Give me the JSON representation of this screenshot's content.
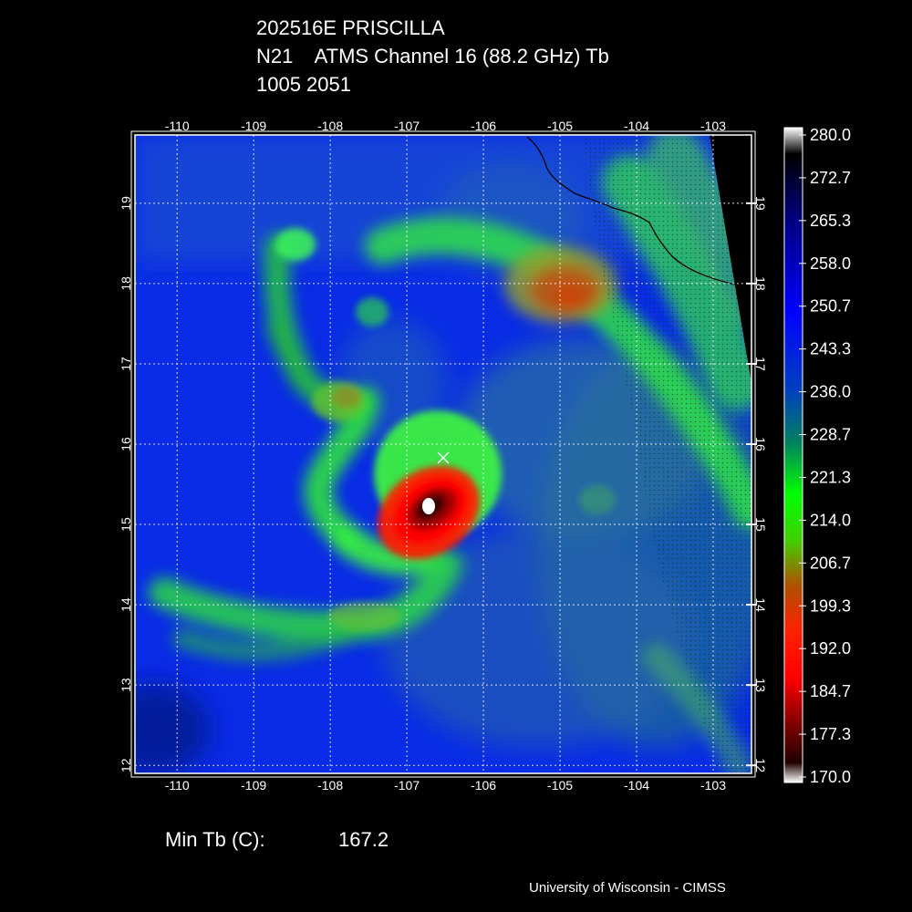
{
  "title": {
    "line1": "202516E PRISCILLA",
    "line2": "N21    ATMS Channel 16 (88.2 GHz) Tb",
    "line3": "1005 2051"
  },
  "map": {
    "lon_range": [
      -110.55,
      -102.5
    ],
    "lat_range": [
      11.9,
      19.85
    ],
    "lon_ticks": [
      -110,
      -109,
      -108,
      -107,
      -106,
      -105,
      -104,
      -103
    ],
    "lat_ticks": [
      12,
      13,
      14,
      15,
      16,
      17,
      18,
      19
    ],
    "lon_tick_labels": [
      "-110",
      "-109",
      "-108",
      "-107",
      "-106",
      "-105",
      "-104",
      "-103"
    ],
    "lat_tick_labels": [
      "12",
      "13",
      "14",
      "15",
      "16",
      "17",
      "18",
      "19"
    ],
    "storm_center": {
      "lon": -106.55,
      "lat": 15.9,
      "marker": "x-marker-icon"
    },
    "coldest_core": {
      "lon": -106.75,
      "lat": 15.3
    }
  },
  "colorbar": {
    "tick_labels": [
      "280.0",
      "272.7",
      "265.3",
      "258.0",
      "250.7",
      "243.3",
      "236.0",
      "228.7",
      "221.3",
      "214.0",
      "206.7",
      "199.3",
      "192.0",
      "184.7",
      "177.3",
      "170.0"
    ],
    "range": [
      170.0,
      280.0
    ],
    "colors": [
      "#ffffff",
      "#000000",
      "#ff0000",
      "#00ff00",
      "#0000ff",
      "#000040"
    ]
  },
  "stats": {
    "min_label": "Min Tb (C):",
    "min_value": "167.2"
  },
  "credit": "University of Wisconsin - CIMSS"
}
